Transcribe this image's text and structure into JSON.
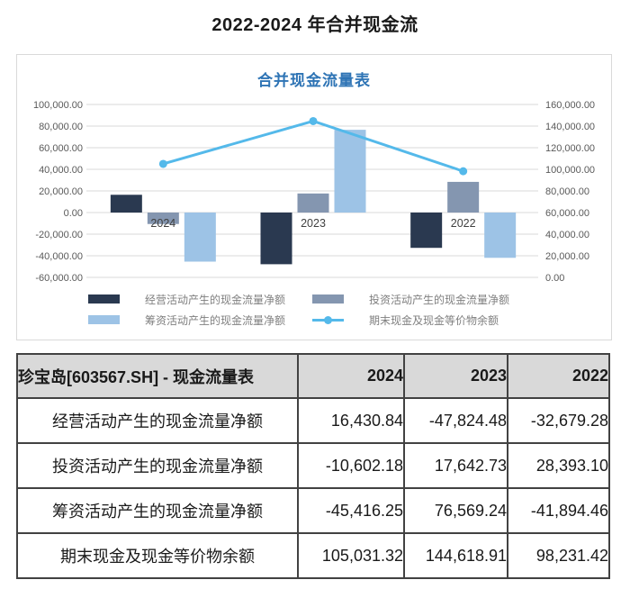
{
  "page": {
    "title": "2022-2024 年合并现金流"
  },
  "chart_data": {
    "type": "bar",
    "title": "合并现金流量表",
    "categories": [
      "2024",
      "2023",
      "2022"
    ],
    "series": [
      {
        "name": "经营活动产生的现金流量净额",
        "type": "bar",
        "axis": "left",
        "color": "#2a3950",
        "values": [
          16430.84,
          -47824.48,
          -32679.28
        ]
      },
      {
        "name": "投资活动产生的现金流量净额",
        "type": "bar",
        "axis": "left",
        "color": "#8496b0",
        "values": [
          -10602.18,
          17642.73,
          28393.1
        ]
      },
      {
        "name": "筹资活动产生的现金流量净额",
        "type": "bar",
        "axis": "left",
        "color": "#9dc3e6",
        "values": [
          -45416.25,
          76569.24,
          -41894.46
        ]
      },
      {
        "name": "期末现金及现金等价物余额",
        "type": "line",
        "axis": "right",
        "color": "#54b9ea",
        "values": [
          105031.32,
          144618.91,
          98231.42
        ]
      }
    ],
    "left_axis": {
      "min": -60000,
      "max": 100000,
      "step": 20000,
      "tick_labels": [
        "100,000.00",
        "80,000.00",
        "60,000.00",
        "40,000.00",
        "20,000.00",
        "0.00",
        "-20,000.00",
        "-40,000.00",
        "-60,000.00"
      ]
    },
    "right_axis": {
      "min": 0,
      "max": 160000,
      "step": 20000,
      "tick_labels": [
        "160,000.00",
        "140,000.00",
        "120,000.00",
        "100,000.00",
        "80,000.00",
        "60,000.00",
        "40,000.00",
        "20,000.00",
        "0.00"
      ]
    },
    "grid": true,
    "legend_position": "bottom",
    "colors": {
      "title": "#2e74b5",
      "gridline": "#d9d9d9",
      "axis_text": "#595959",
      "category_text": "#404040",
      "legend_text": "#7f7f7f"
    }
  },
  "table": {
    "title": "珍宝岛[603567.SH] - 现金流量表",
    "columns": [
      "2024",
      "2023",
      "2022"
    ],
    "rows": [
      {
        "label": "经营活动产生的现金流量净额",
        "values": [
          "16,430.84",
          "-47,824.48",
          "-32,679.28"
        ]
      },
      {
        "label": "投资活动产生的现金流量净额",
        "values": [
          "-10,602.18",
          "17,642.73",
          "28,393.10"
        ]
      },
      {
        "label": "筹资活动产生的现金流量净额",
        "values": [
          "-45,416.25",
          "76,569.24",
          "-41,894.46"
        ]
      },
      {
        "label": "期末现金及现金等价物余额",
        "values": [
          "105,031.32",
          "144,618.91",
          "98,231.42"
        ]
      }
    ]
  }
}
